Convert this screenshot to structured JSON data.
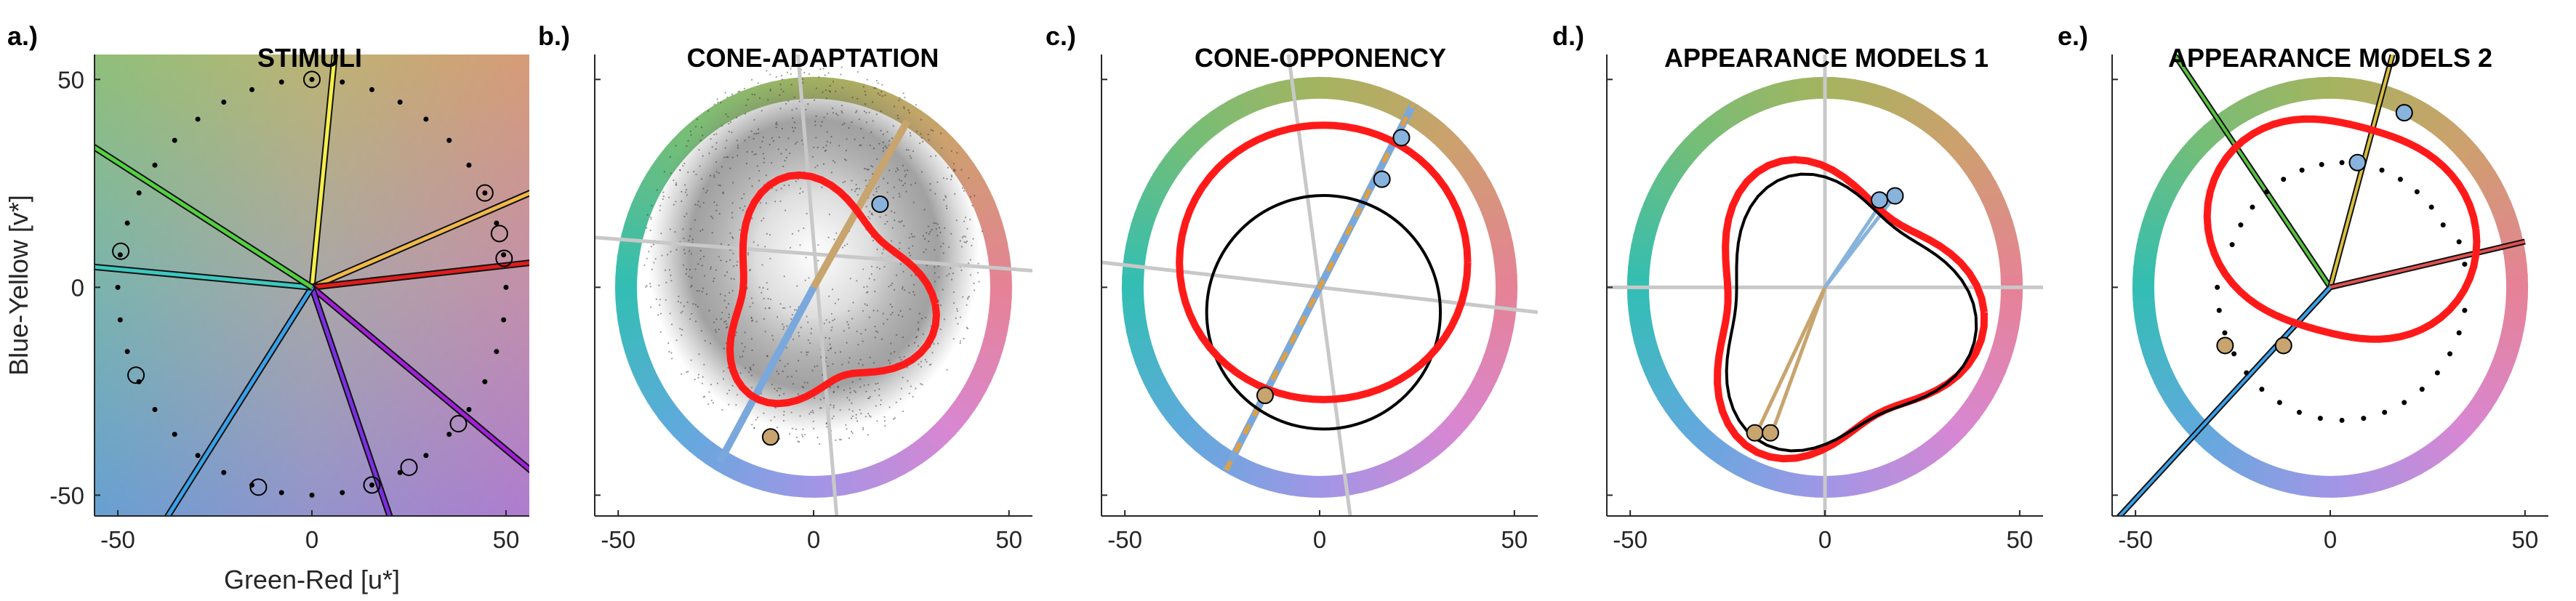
{
  "figure": {
    "background": "#ffffff",
    "stimuli_background": "#a6a6a6"
  },
  "chart_data": [
    {
      "type": "scatter",
      "panel_letter": "a.)",
      "title": "STIMULI",
      "xlabel": "Green-Red [u*]",
      "ylabel": "Blue-Yellow [v*]",
      "xlim": [
        -56,
        56
      ],
      "ylim": [
        -55,
        56
      ],
      "xticks": [
        -50,
        0,
        50
      ],
      "yticks": [
        -50,
        0,
        50
      ],
      "stimulus_radius": 50,
      "stimulus_count": 40,
      "sample_angles_deg": [
        8,
        15,
        27,
        90,
        170,
        205,
        254,
        288,
        300,
        319
      ],
      "stimulus_lines": [
        {
          "angle_deg": 84,
          "color": "#f5ef4a"
        },
        {
          "angle_deg": 22,
          "color": "#f0b848"
        },
        {
          "angle_deg": 6,
          "color": "#e01c1c"
        },
        {
          "angle_deg": 322,
          "color": "#a020d8"
        },
        {
          "angle_deg": 290,
          "color": "#7a30e0"
        },
        {
          "angle_deg": 236,
          "color": "#3aa0e8"
        },
        {
          "angle_deg": 175,
          "color": "#3cc8c0"
        },
        {
          "angle_deg": 149,
          "color": "#52d040"
        }
      ]
    },
    {
      "type": "scatter",
      "panel_letter": "b.)",
      "title": "CONE-ADAPTATION",
      "xlim": [
        -56,
        56
      ],
      "ylim": [
        -55,
        56
      ],
      "xticks": [
        -50,
        0,
        50
      ],
      "ring_radius": 48,
      "gray_lines_deg": [
        [
          -25,
          10
        ],
        [
          5,
          -2
        ],
        [
          -1,
          -50
        ],
        [
          6,
          52
        ]
      ],
      "target_lines": [
        {
          "from": [
            0,
            0
          ],
          "to": [
            24,
            40
          ],
          "color": "#c8a46e"
        },
        {
          "from": [
            0,
            0
          ],
          "to": [
            -24,
            -42
          ],
          "color": "#7aa8dc"
        }
      ],
      "cloud": {
        "center": [
          0,
          8
        ],
        "radius": 34
      },
      "points": [
        {
          "x": 17,
          "y": 20,
          "color": "#87b3dc"
        },
        {
          "x": -11,
          "y": -36,
          "color": "#c8a46e"
        }
      ]
    },
    {
      "type": "line",
      "panel_letter": "c.)",
      "title": "CONE-OPPONENCY",
      "xlim": [
        -56,
        56
      ],
      "ylim": [
        -55,
        56
      ],
      "xticks": [
        -50,
        0,
        50
      ],
      "ring_radius": 48,
      "gray_lines": [
        {
          "from": [
            -56,
            6
          ],
          "to": [
            56,
            -6
          ]
        },
        {
          "from": [
            -8,
            56
          ],
          "to": [
            8,
            -56
          ]
        }
      ],
      "dashed_line": {
        "from": [
          -24,
          -44
        ],
        "to": [
          24,
          44
        ],
        "colors": [
          "#7aa8dc",
          "#e0a040"
        ]
      },
      "black_circle": {
        "center": [
          1,
          -6
        ],
        "radius": 30
      },
      "points": [
        {
          "x": 21,
          "y": 36,
          "color": "#87b3dc"
        },
        {
          "x": 16,
          "y": 26,
          "color": "#87b3dc"
        },
        {
          "x": -14,
          "y": -26,
          "color": "#c8a46e"
        }
      ]
    },
    {
      "type": "line",
      "panel_letter": "d.)",
      "title": "APPEARANCE MODELS 1",
      "xlim": [
        -56,
        56
      ],
      "ylim": [
        -55,
        56
      ],
      "xticks": [
        -50,
        0,
        50
      ],
      "ring_radius": 48,
      "axes_gray": true,
      "rays": [
        {
          "to": [
            15,
            21
          ],
          "color": "#87b3dc"
        },
        {
          "to": [
            18,
            22
          ],
          "color": "#87b3dc"
        },
        {
          "to": [
            -18,
            -36
          ],
          "color": "#c8a46e"
        },
        {
          "to": [
            -14,
            -36
          ],
          "color": "#c8a46e"
        }
      ],
      "points": [
        {
          "x": 14,
          "y": 21,
          "color": "#87b3dc"
        },
        {
          "x": 18,
          "y": 22,
          "color": "#87b3dc"
        },
        {
          "x": -18,
          "y": -35,
          "color": "#c8a46e"
        },
        {
          "x": -14,
          "y": -35,
          "color": "#c8a46e"
        }
      ]
    },
    {
      "type": "line",
      "panel_letter": "e.)",
      "title": "APPEARANCE MODELS 2",
      "xlim": [
        -56,
        56
      ],
      "ylim": [
        -55,
        56
      ],
      "xticks": [
        -50,
        0,
        50
      ],
      "ring_radius": 48,
      "lines": [
        {
          "to": [
            -40,
            56
          ],
          "color": "#58c040"
        },
        {
          "to": [
            16,
            56
          ],
          "color": "#d8c040"
        },
        {
          "to": [
            50,
            11
          ],
          "color": "#e05050"
        },
        {
          "to": [
            -56,
            -57
          ],
          "color": "#3aa0e8"
        }
      ],
      "dotted_circle": {
        "center": [
          3,
          0
        ],
        "radius": 30
      },
      "points": [
        {
          "x": 19,
          "y": 42,
          "color": "#87b3dc"
        },
        {
          "x": 7,
          "y": 30,
          "color": "#87b3dc"
        },
        {
          "x": -27,
          "y": -14,
          "color": "#c8a46e"
        },
        {
          "x": -12,
          "y": -14,
          "color": "#c8a46e"
        }
      ]
    }
  ]
}
